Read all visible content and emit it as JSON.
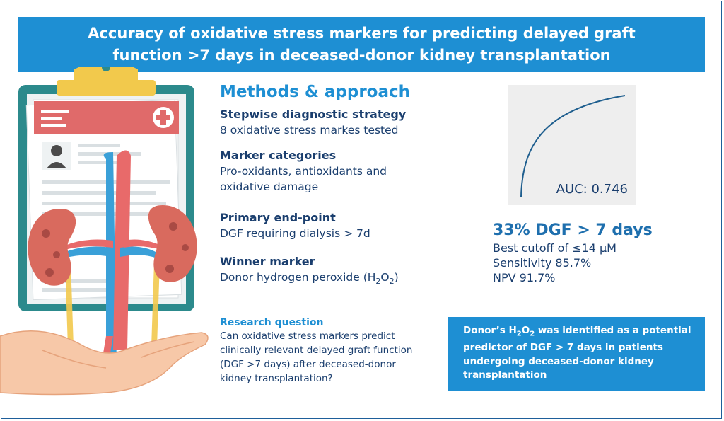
{
  "title": {
    "line1": "Accuracy of oxidative stress markers for predicting delayed graft",
    "line2": "function >7 days in deceased-donor kidney transplantation"
  },
  "methods": {
    "heading": "Methods & approach",
    "items": [
      {
        "heading": "Stepwise diagnostic strategy",
        "text": "8 oxidative stress markes tested"
      },
      {
        "heading": "Marker categories",
        "text_line1": "Pro-oxidants, antioxidants and",
        "text_line2": "oxidative damage"
      },
      {
        "heading": "Primary end-point",
        "text": "DGF requiring dialysis > 7d"
      },
      {
        "heading": "Winner marker",
        "text_prefix": "Donor hydrogen peroxide (H",
        "sub1": "2",
        "mid": "O",
        "sub2": "2",
        "suffix": ")"
      }
    ]
  },
  "research_question": {
    "heading": "Research question",
    "lines": [
      "Can oxidative stress markers predict",
      "clinically relevant delayed graft function",
      "(DGF >7 days) after deceased-donor",
      "kidney transplantation?"
    ]
  },
  "roc": {
    "auc_label": "AUC: 0.746"
  },
  "results": {
    "headline": "33% DGF > 7 days",
    "lines": [
      "Best cutoff of ≤14 µM",
      "Sensitivity 85.7%",
      "NPV 91.7%"
    ]
  },
  "conclusion": {
    "line1_prefix": "Donor’s H",
    "line1_sub1": "2",
    "line1_mid": "O",
    "line1_sub2": "2",
    "line1_suffix": " was identified as a potential",
    "lines": [
      "predictor of DGF > 7 days in patients",
      "undergoing deceased-donor kidney",
      "transplantation"
    ]
  },
  "colors": {
    "primary_blue": "#1e8fd3",
    "navy_text": "#1a3e6e",
    "clipboard_teal": "#2c8a8c",
    "clip_yellow": "#f2c94c",
    "kidney": "#d96a5e",
    "artery": "#e86a6a",
    "vein": "#3aa0d8",
    "hand": "#f7c8a8"
  },
  "icons": [
    "clipboard-icon",
    "medical-cross-icon",
    "patient-avatar-icon",
    "kidney-icon",
    "hand-icon"
  ]
}
